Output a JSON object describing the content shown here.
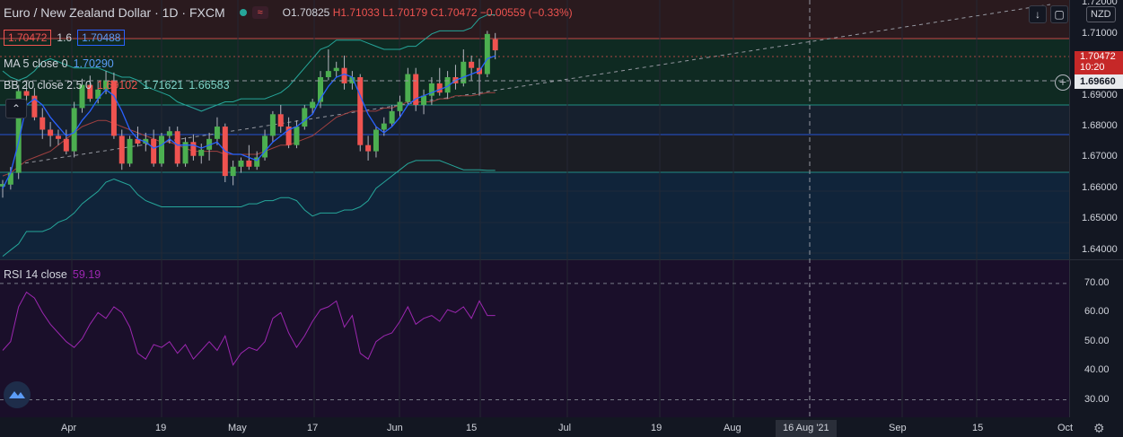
{
  "header": {
    "symbol_title": "Euro / New Zealand Dollar · 1D · FXCM",
    "ohlc_open": "O1.70825",
    "ohlc_high": "H1.71033",
    "ohlc_low": "L1.70179",
    "ohlc_close": "C1.70472",
    "ohlc_change": "−0.00559 (−0.33%)"
  },
  "trade": {
    "sell_price": "1.70472",
    "spread": "1.6",
    "buy_price": "1.70488"
  },
  "indicators": {
    "ma_label": "MA 5 close 0",
    "ma_value": "1.70290",
    "bb_label": "BB 20 close 2.5 0",
    "bb_basis": "1.69102",
    "bb_upper": "1.71621",
    "bb_lower": "1.66583",
    "rsi_label": "RSI 14 close",
    "rsi_value": "59.19"
  },
  "price_axis": {
    "currency": "NZD",
    "ticks": [
      "1.72000",
      "1.71000",
      "1.70000",
      "1.69000",
      "1.68000",
      "1.67000",
      "1.66000",
      "1.65000",
      "1.64000"
    ],
    "last_price_label": "1.70472",
    "countdown_label": "10:20",
    "crosshair_price": "1.69660"
  },
  "rsi_axis": {
    "ticks": [
      "70.00",
      "60.00",
      "50.00",
      "40.00",
      "30.00"
    ]
  },
  "time_axis": {
    "labels": [
      "Apr",
      "19",
      "May",
      "17",
      "Jun",
      "15",
      "Jul",
      "19",
      "Aug",
      "Sep",
      "15",
      "Oct"
    ],
    "crosshair_date": "16 Aug '21"
  },
  "icons": {
    "scroll_down": "arrow-down-icon",
    "fullscreen": "fullscreen-icon",
    "collapse": "chevron-up-icon",
    "crosshair_add": "plus-circle-icon",
    "settings": "gear-icon",
    "logo": "tradingview-logo-icon"
  },
  "colors": {
    "bull": "#26a69a",
    "bull_candle": "#4caf50",
    "bear": "#ef5350",
    "ma": "#2962ff",
    "bb": "#26a69a",
    "rsi": "#9c27b0",
    "background": "#131722"
  },
  "chart_data": {
    "type": "candlestick",
    "symbol": "EURNZD",
    "interval": "1D",
    "y_range": [
      1.637,
      1.721
    ],
    "candles": [
      {
        "o": 1.6606,
        "h": 1.6627,
        "l": 1.657,
        "c": 1.6614
      },
      {
        "o": 1.6612,
        "h": 1.6669,
        "l": 1.6596,
        "c": 1.665
      },
      {
        "o": 1.665,
        "h": 1.6935,
        "l": 1.663,
        "c": 1.6915
      },
      {
        "o": 1.6915,
        "h": 1.6945,
        "l": 1.686,
        "c": 1.69
      },
      {
        "o": 1.69,
        "h": 1.6925,
        "l": 1.682,
        "c": 1.683
      },
      {
        "o": 1.683,
        "h": 1.686,
        "l": 1.676,
        "c": 1.679
      },
      {
        "o": 1.679,
        "h": 1.6815,
        "l": 1.6735,
        "c": 1.677
      },
      {
        "o": 1.677,
        "h": 1.679,
        "l": 1.674,
        "c": 1.676
      },
      {
        "o": 1.676,
        "h": 1.679,
        "l": 1.671,
        "c": 1.672
      },
      {
        "o": 1.672,
        "h": 1.688,
        "l": 1.67,
        "c": 1.686
      },
      {
        "o": 1.686,
        "h": 1.6955,
        "l": 1.6845,
        "c": 1.6935
      },
      {
        "o": 1.6935,
        "h": 1.6965,
        "l": 1.688,
        "c": 1.689
      },
      {
        "o": 1.689,
        "h": 1.6945,
        "l": 1.6875,
        "c": 1.692
      },
      {
        "o": 1.692,
        "h": 1.698,
        "l": 1.6905,
        "c": 1.695
      },
      {
        "o": 1.695,
        "h": 1.6975,
        "l": 1.676,
        "c": 1.677
      },
      {
        "o": 1.677,
        "h": 1.679,
        "l": 1.666,
        "c": 1.668
      },
      {
        "o": 1.668,
        "h": 1.677,
        "l": 1.667,
        "c": 1.676
      },
      {
        "o": 1.676,
        "h": 1.68,
        "l": 1.6735,
        "c": 1.6745
      },
      {
        "o": 1.6745,
        "h": 1.678,
        "l": 1.672,
        "c": 1.676
      },
      {
        "o": 1.676,
        "h": 1.679,
        "l": 1.667,
        "c": 1.668
      },
      {
        "o": 1.668,
        "h": 1.678,
        "l": 1.667,
        "c": 1.677
      },
      {
        "o": 1.677,
        "h": 1.68,
        "l": 1.6745,
        "c": 1.6785
      },
      {
        "o": 1.6785,
        "h": 1.68,
        "l": 1.667,
        "c": 1.668
      },
      {
        "o": 1.668,
        "h": 1.6765,
        "l": 1.667,
        "c": 1.675
      },
      {
        "o": 1.675,
        "h": 1.6775,
        "l": 1.669,
        "c": 1.6705
      },
      {
        "o": 1.6705,
        "h": 1.6745,
        "l": 1.668,
        "c": 1.6725
      },
      {
        "o": 1.6725,
        "h": 1.678,
        "l": 1.669,
        "c": 1.676
      },
      {
        "o": 1.676,
        "h": 1.683,
        "l": 1.674,
        "c": 1.68
      },
      {
        "o": 1.68,
        "h": 1.681,
        "l": 1.662,
        "c": 1.664
      },
      {
        "o": 1.664,
        "h": 1.669,
        "l": 1.661,
        "c": 1.667
      },
      {
        "o": 1.667,
        "h": 1.67,
        "l": 1.665,
        "c": 1.669
      },
      {
        "o": 1.669,
        "h": 1.674,
        "l": 1.666,
        "c": 1.667
      },
      {
        "o": 1.667,
        "h": 1.672,
        "l": 1.666,
        "c": 1.67
      },
      {
        "o": 1.67,
        "h": 1.679,
        "l": 1.669,
        "c": 1.677
      },
      {
        "o": 1.677,
        "h": 1.685,
        "l": 1.675,
        "c": 1.684
      },
      {
        "o": 1.684,
        "h": 1.687,
        "l": 1.678,
        "c": 1.68
      },
      {
        "o": 1.68,
        "h": 1.683,
        "l": 1.673,
        "c": 1.674
      },
      {
        "o": 1.674,
        "h": 1.682,
        "l": 1.673,
        "c": 1.68
      },
      {
        "o": 1.68,
        "h": 1.687,
        "l": 1.679,
        "c": 1.686
      },
      {
        "o": 1.686,
        "h": 1.689,
        "l": 1.684,
        "c": 1.688
      },
      {
        "o": 1.688,
        "h": 1.698,
        "l": 1.686,
        "c": 1.696
      },
      {
        "o": 1.696,
        "h": 1.705,
        "l": 1.695,
        "c": 1.698
      },
      {
        "o": 1.698,
        "h": 1.701,
        "l": 1.696,
        "c": 1.699
      },
      {
        "o": 1.699,
        "h": 1.703,
        "l": 1.692,
        "c": 1.694
      },
      {
        "o": 1.694,
        "h": 1.698,
        "l": 1.692,
        "c": 1.696
      },
      {
        "o": 1.696,
        "h": 1.697,
        "l": 1.672,
        "c": 1.674
      },
      {
        "o": 1.674,
        "h": 1.677,
        "l": 1.669,
        "c": 1.672
      },
      {
        "o": 1.672,
        "h": 1.68,
        "l": 1.67,
        "c": 1.679
      },
      {
        "o": 1.679,
        "h": 1.683,
        "l": 1.677,
        "c": 1.681
      },
      {
        "o": 1.681,
        "h": 1.687,
        "l": 1.68,
        "c": 1.685
      },
      {
        "o": 1.685,
        "h": 1.69,
        "l": 1.683,
        "c": 1.688
      },
      {
        "o": 1.688,
        "h": 1.699,
        "l": 1.687,
        "c": 1.697
      },
      {
        "o": 1.697,
        "h": 1.699,
        "l": 1.685,
        "c": 1.687
      },
      {
        "o": 1.687,
        "h": 1.692,
        "l": 1.684,
        "c": 1.69
      },
      {
        "o": 1.69,
        "h": 1.696,
        "l": 1.687,
        "c": 1.694
      },
      {
        "o": 1.694,
        "h": 1.699,
        "l": 1.69,
        "c": 1.691
      },
      {
        "o": 1.691,
        "h": 1.698,
        "l": 1.689,
        "c": 1.696
      },
      {
        "o": 1.696,
        "h": 1.7,
        "l": 1.692,
        "c": 1.694
      },
      {
        "o": 1.694,
        "h": 1.705,
        "l": 1.693,
        "c": 1.701
      },
      {
        "o": 1.701,
        "h": 1.703,
        "l": 1.695,
        "c": 1.699
      },
      {
        "o": 1.699,
        "h": 1.702,
        "l": 1.69,
        "c": 1.697
      },
      {
        "o": 1.697,
        "h": 1.711,
        "l": 1.696,
        "c": 1.71
      },
      {
        "o": 1.7083,
        "h": 1.7103,
        "l": 1.7018,
        "c": 1.7047
      }
    ],
    "ma5": [
      1.66,
      1.665,
      1.675,
      1.687,
      1.689,
      1.687,
      1.683,
      1.68,
      1.677,
      1.678,
      1.682,
      1.685,
      1.689,
      1.692,
      1.69,
      1.685,
      1.679,
      1.676,
      1.675,
      1.673,
      1.674,
      1.676,
      1.674,
      1.674,
      1.674,
      1.673,
      1.674,
      1.675,
      1.672,
      1.671,
      1.671,
      1.67,
      1.669,
      1.672,
      1.675,
      1.677,
      1.679,
      1.68,
      1.682,
      1.684,
      1.689,
      1.693,
      1.696,
      1.697,
      1.696,
      1.69,
      1.684,
      1.68,
      1.678,
      1.68,
      1.683,
      1.687,
      1.689,
      1.69,
      1.691,
      1.692,
      1.693,
      1.695,
      1.696,
      1.697,
      1.698,
      1.702,
      1.7029
    ],
    "bb_basis": [
      1.664,
      1.665,
      1.667,
      1.669,
      1.67,
      1.671,
      1.672,
      1.674,
      1.676,
      1.678,
      1.68,
      1.681,
      1.682,
      1.682,
      1.681,
      1.68,
      1.679,
      1.678,
      1.677,
      1.676,
      1.675,
      1.675,
      1.674,
      1.673,
      1.672,
      1.672,
      1.672,
      1.672,
      1.671,
      1.671,
      1.671,
      1.671,
      1.671,
      1.672,
      1.673,
      1.674,
      1.674,
      1.675,
      1.676,
      1.677,
      1.679,
      1.681,
      1.683,
      1.684,
      1.685,
      1.685,
      1.685,
      1.685,
      1.686,
      1.686,
      1.687,
      1.688,
      1.688,
      1.688,
      1.688,
      1.689,
      1.689,
      1.69,
      1.69,
      1.69,
      1.6905,
      1.691,
      1.691
    ],
    "bb_upper": [
      1.698,
      1.696,
      1.695,
      1.696,
      1.698,
      1.701,
      1.702,
      1.701,
      1.7,
      1.699,
      1.699,
      1.699,
      1.699,
      1.698,
      1.697,
      1.696,
      1.696,
      1.695,
      1.693,
      1.692,
      1.691,
      1.69,
      1.688,
      1.687,
      1.686,
      1.685,
      1.686,
      1.687,
      1.688,
      1.688,
      1.689,
      1.689,
      1.689,
      1.689,
      1.69,
      1.691,
      1.693,
      1.696,
      1.699,
      1.702,
      1.705,
      1.706,
      1.708,
      1.708,
      1.708,
      1.708,
      1.707,
      1.706,
      1.705,
      1.705,
      1.705,
      1.706,
      1.706,
      1.708,
      1.71,
      1.711,
      1.711,
      1.711,
      1.711,
      1.712,
      1.715,
      1.7162,
      1.7162
    ],
    "bb_lower": [
      1.638,
      1.64,
      1.642,
      1.646,
      1.646,
      1.646,
      1.647,
      1.649,
      1.65,
      1.652,
      1.655,
      1.657,
      1.659,
      1.662,
      1.663,
      1.662,
      1.661,
      1.658,
      1.656,
      1.655,
      1.654,
      1.654,
      1.654,
      1.654,
      1.654,
      1.654,
      1.654,
      1.654,
      1.654,
      1.654,
      1.654,
      1.655,
      1.655,
      1.656,
      1.656,
      1.657,
      1.657,
      1.656,
      1.653,
      1.651,
      1.652,
      1.652,
      1.652,
      1.653,
      1.653,
      1.654,
      1.656,
      1.66,
      1.662,
      1.664,
      1.666,
      1.668,
      1.669,
      1.669,
      1.669,
      1.669,
      1.668,
      1.667,
      1.666,
      1.666,
      1.666,
      1.6658,
      1.6658
    ],
    "rsi": [
      47,
      50,
      62,
      67,
      65,
      60,
      56,
      53,
      50,
      48,
      51,
      56,
      60,
      58,
      62,
      60,
      55,
      46,
      44,
      49,
      48,
      50,
      46,
      49,
      44,
      47,
      50,
      47,
      52,
      42,
      46,
      48,
      47,
      50,
      58,
      60,
      53,
      48,
      52,
      57,
      61,
      62,
      64,
      55,
      59,
      46,
      44,
      50,
      52,
      53,
      57,
      62,
      56,
      58,
      59,
      57,
      61,
      60,
      62,
      58,
      64,
      59,
      59
    ]
  }
}
